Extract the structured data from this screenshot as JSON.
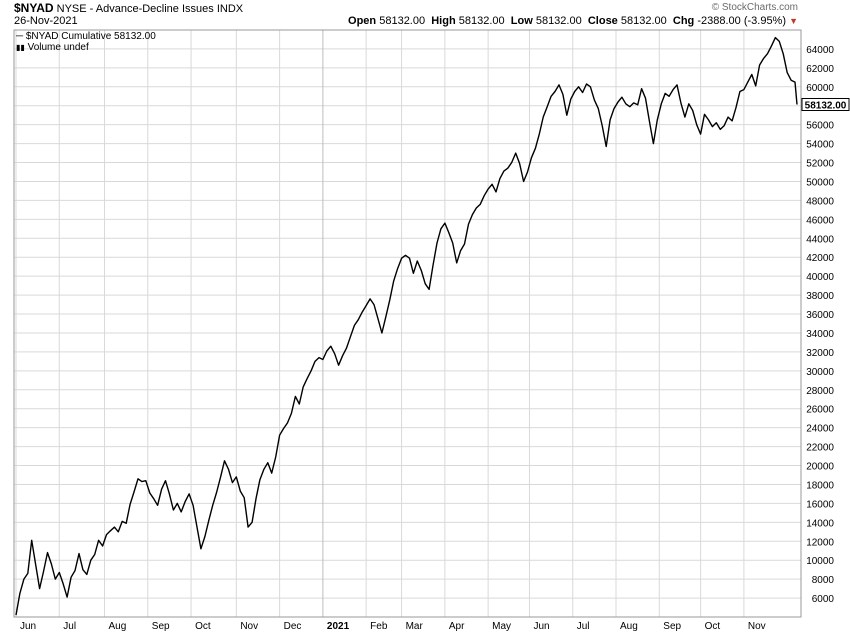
{
  "header": {
    "symbol": "$NYAD",
    "description": "NYSE - Advance-Decline Issues",
    "exchange": "INDX",
    "date": "26-Nov-2021",
    "open_label": "Open",
    "open": "58132.00",
    "high_label": "High",
    "high": "58132.00",
    "low_label": "Low",
    "low": "58132.00",
    "close_label": "Close",
    "close": "58132.00",
    "chg_label": "Chg",
    "chg": "-2388.00 (-3.95%)",
    "credit": "© StockCharts.com"
  },
  "legend": {
    "series_label": "$NYAD Cumulative 58132.00",
    "volume_label": "Volume undef"
  },
  "colors": {
    "line": "#000000",
    "grid": "#d9d9d9",
    "frame": "#9a9a9a",
    "down_triangle": "#c0392b"
  },
  "chart_data": {
    "type": "line",
    "ylim": [
      4000,
      66000
    ],
    "y_ticks": [
      6000,
      8000,
      10000,
      12000,
      14000,
      16000,
      18000,
      20000,
      22000,
      24000,
      26000,
      28000,
      30000,
      32000,
      34000,
      36000,
      38000,
      40000,
      42000,
      44000,
      46000,
      48000,
      50000,
      52000,
      54000,
      56000,
      58000,
      60000,
      62000,
      64000
    ],
    "x_labels": [
      "Jun",
      "Jul",
      "Aug",
      "Sep",
      "Oct",
      "Nov",
      "Dec",
      "2021",
      "Feb",
      "Mar",
      "Apr",
      "May",
      "Jun",
      "Jul",
      "Aug",
      "Sep",
      "Oct",
      "Nov"
    ],
    "last_value_label": "58132.00",
    "grid": true,
    "y_axis_side": "right",
    "series": [
      {
        "points": [
          [
            0,
            4200
          ],
          [
            2,
            6500
          ],
          [
            4,
            8000
          ],
          [
            6,
            8600
          ],
          [
            8,
            12100
          ],
          [
            10,
            9500
          ],
          [
            12,
            7000
          ],
          [
            14,
            8800
          ],
          [
            16,
            10800
          ],
          [
            18,
            9600
          ],
          [
            20,
            8000
          ],
          [
            22,
            8700
          ],
          [
            24,
            7500
          ],
          [
            26,
            6100
          ],
          [
            28,
            8200
          ],
          [
            30,
            8900
          ],
          [
            32,
            10700
          ],
          [
            34,
            9000
          ],
          [
            36,
            8500
          ],
          [
            38,
            10000
          ],
          [
            40,
            10600
          ],
          [
            42,
            12100
          ],
          [
            44,
            11500
          ],
          [
            46,
            12700
          ],
          [
            48,
            13100
          ],
          [
            50,
            13500
          ],
          [
            52,
            13000
          ],
          [
            54,
            14100
          ],
          [
            56,
            13900
          ],
          [
            58,
            15900
          ],
          [
            60,
            17200
          ],
          [
            62,
            18600
          ],
          [
            64,
            18300
          ],
          [
            66,
            18400
          ],
          [
            68,
            17100
          ],
          [
            70,
            16500
          ],
          [
            72,
            15800
          ],
          [
            74,
            17500
          ],
          [
            76,
            18400
          ],
          [
            78,
            17000
          ],
          [
            80,
            15300
          ],
          [
            82,
            16000
          ],
          [
            84,
            15100
          ],
          [
            86,
            16200
          ],
          [
            88,
            17000
          ],
          [
            90,
            15800
          ],
          [
            92,
            13500
          ],
          [
            94,
            11200
          ],
          [
            96,
            12500
          ],
          [
            98,
            14200
          ],
          [
            100,
            15800
          ],
          [
            102,
            17200
          ],
          [
            104,
            18800
          ],
          [
            106,
            20500
          ],
          [
            108,
            19600
          ],
          [
            110,
            18200
          ],
          [
            112,
            18800
          ],
          [
            114,
            17300
          ],
          [
            116,
            16600
          ],
          [
            118,
            13500
          ],
          [
            120,
            14000
          ],
          [
            122,
            16500
          ],
          [
            124,
            18500
          ],
          [
            126,
            19600
          ],
          [
            128,
            20300
          ],
          [
            130,
            19200
          ],
          [
            132,
            20900
          ],
          [
            134,
            23200
          ],
          [
            136,
            23900
          ],
          [
            138,
            24500
          ],
          [
            140,
            25500
          ],
          [
            142,
            27300
          ],
          [
            144,
            26500
          ],
          [
            146,
            28300
          ],
          [
            148,
            29200
          ],
          [
            150,
            30000
          ],
          [
            152,
            31000
          ],
          [
            154,
            31400
          ],
          [
            156,
            31200
          ],
          [
            158,
            32100
          ],
          [
            160,
            32600
          ],
          [
            162,
            31800
          ],
          [
            164,
            30600
          ],
          [
            166,
            31600
          ],
          [
            168,
            32400
          ],
          [
            170,
            33600
          ],
          [
            172,
            34800
          ],
          [
            174,
            35400
          ],
          [
            176,
            36200
          ],
          [
            178,
            36900
          ],
          [
            180,
            37600
          ],
          [
            182,
            37000
          ],
          [
            184,
            35500
          ],
          [
            186,
            34000
          ],
          [
            188,
            35700
          ],
          [
            190,
            37500
          ],
          [
            192,
            39500
          ],
          [
            194,
            40800
          ],
          [
            196,
            41900
          ],
          [
            198,
            42200
          ],
          [
            200,
            41900
          ],
          [
            202,
            40300
          ],
          [
            204,
            41600
          ],
          [
            206,
            40600
          ],
          [
            208,
            39200
          ],
          [
            210,
            38600
          ],
          [
            212,
            41200
          ],
          [
            214,
            43500
          ],
          [
            216,
            45000
          ],
          [
            218,
            45600
          ],
          [
            220,
            44600
          ],
          [
            222,
            43500
          ],
          [
            224,
            41400
          ],
          [
            226,
            42700
          ],
          [
            228,
            43400
          ],
          [
            230,
            45500
          ],
          [
            232,
            46500
          ],
          [
            234,
            47200
          ],
          [
            236,
            47600
          ],
          [
            238,
            48500
          ],
          [
            240,
            49200
          ],
          [
            242,
            49700
          ],
          [
            244,
            48900
          ],
          [
            246,
            50300
          ],
          [
            248,
            51100
          ],
          [
            250,
            51400
          ],
          [
            252,
            52000
          ],
          [
            254,
            53000
          ],
          [
            256,
            51900
          ],
          [
            258,
            50000
          ],
          [
            260,
            51000
          ],
          [
            262,
            52500
          ],
          [
            264,
            53500
          ],
          [
            266,
            55000
          ],
          [
            268,
            56800
          ],
          [
            270,
            57900
          ],
          [
            272,
            59000
          ],
          [
            274,
            59500
          ],
          [
            276,
            60200
          ],
          [
            278,
            59200
          ],
          [
            280,
            57000
          ],
          [
            282,
            58700
          ],
          [
            284,
            59500
          ],
          [
            286,
            60000
          ],
          [
            288,
            59400
          ],
          [
            290,
            60300
          ],
          [
            292,
            60000
          ],
          [
            294,
            58600
          ],
          [
            296,
            57700
          ],
          [
            298,
            55900
          ],
          [
            300,
            53700
          ],
          [
            302,
            56500
          ],
          [
            304,
            57700
          ],
          [
            306,
            58400
          ],
          [
            308,
            58900
          ],
          [
            310,
            58200
          ],
          [
            312,
            57900
          ],
          [
            314,
            58300
          ],
          [
            316,
            58100
          ],
          [
            318,
            59800
          ],
          [
            320,
            58800
          ],
          [
            322,
            56300
          ],
          [
            324,
            54000
          ],
          [
            326,
            56500
          ],
          [
            328,
            58200
          ],
          [
            330,
            59300
          ],
          [
            332,
            59000
          ],
          [
            334,
            59700
          ],
          [
            336,
            60200
          ],
          [
            338,
            58300
          ],
          [
            340,
            56800
          ],
          [
            342,
            58200
          ],
          [
            344,
            57500
          ],
          [
            346,
            56000
          ],
          [
            348,
            55000
          ],
          [
            350,
            57100
          ],
          [
            352,
            56500
          ],
          [
            354,
            55800
          ],
          [
            356,
            56200
          ],
          [
            358,
            55500
          ],
          [
            360,
            55900
          ],
          [
            362,
            56800
          ],
          [
            364,
            56400
          ],
          [
            366,
            57800
          ],
          [
            368,
            59500
          ],
          [
            370,
            59700
          ],
          [
            372,
            60500
          ],
          [
            374,
            61300
          ],
          [
            376,
            60100
          ],
          [
            378,
            62300
          ],
          [
            380,
            63000
          ],
          [
            382,
            63500
          ],
          [
            384,
            64300
          ],
          [
            386,
            65200
          ],
          [
            388,
            64800
          ],
          [
            390,
            63500
          ],
          [
            392,
            61500
          ],
          [
            394,
            60700
          ],
          [
            396,
            60500
          ],
          [
            397,
            58132
          ]
        ]
      }
    ]
  }
}
